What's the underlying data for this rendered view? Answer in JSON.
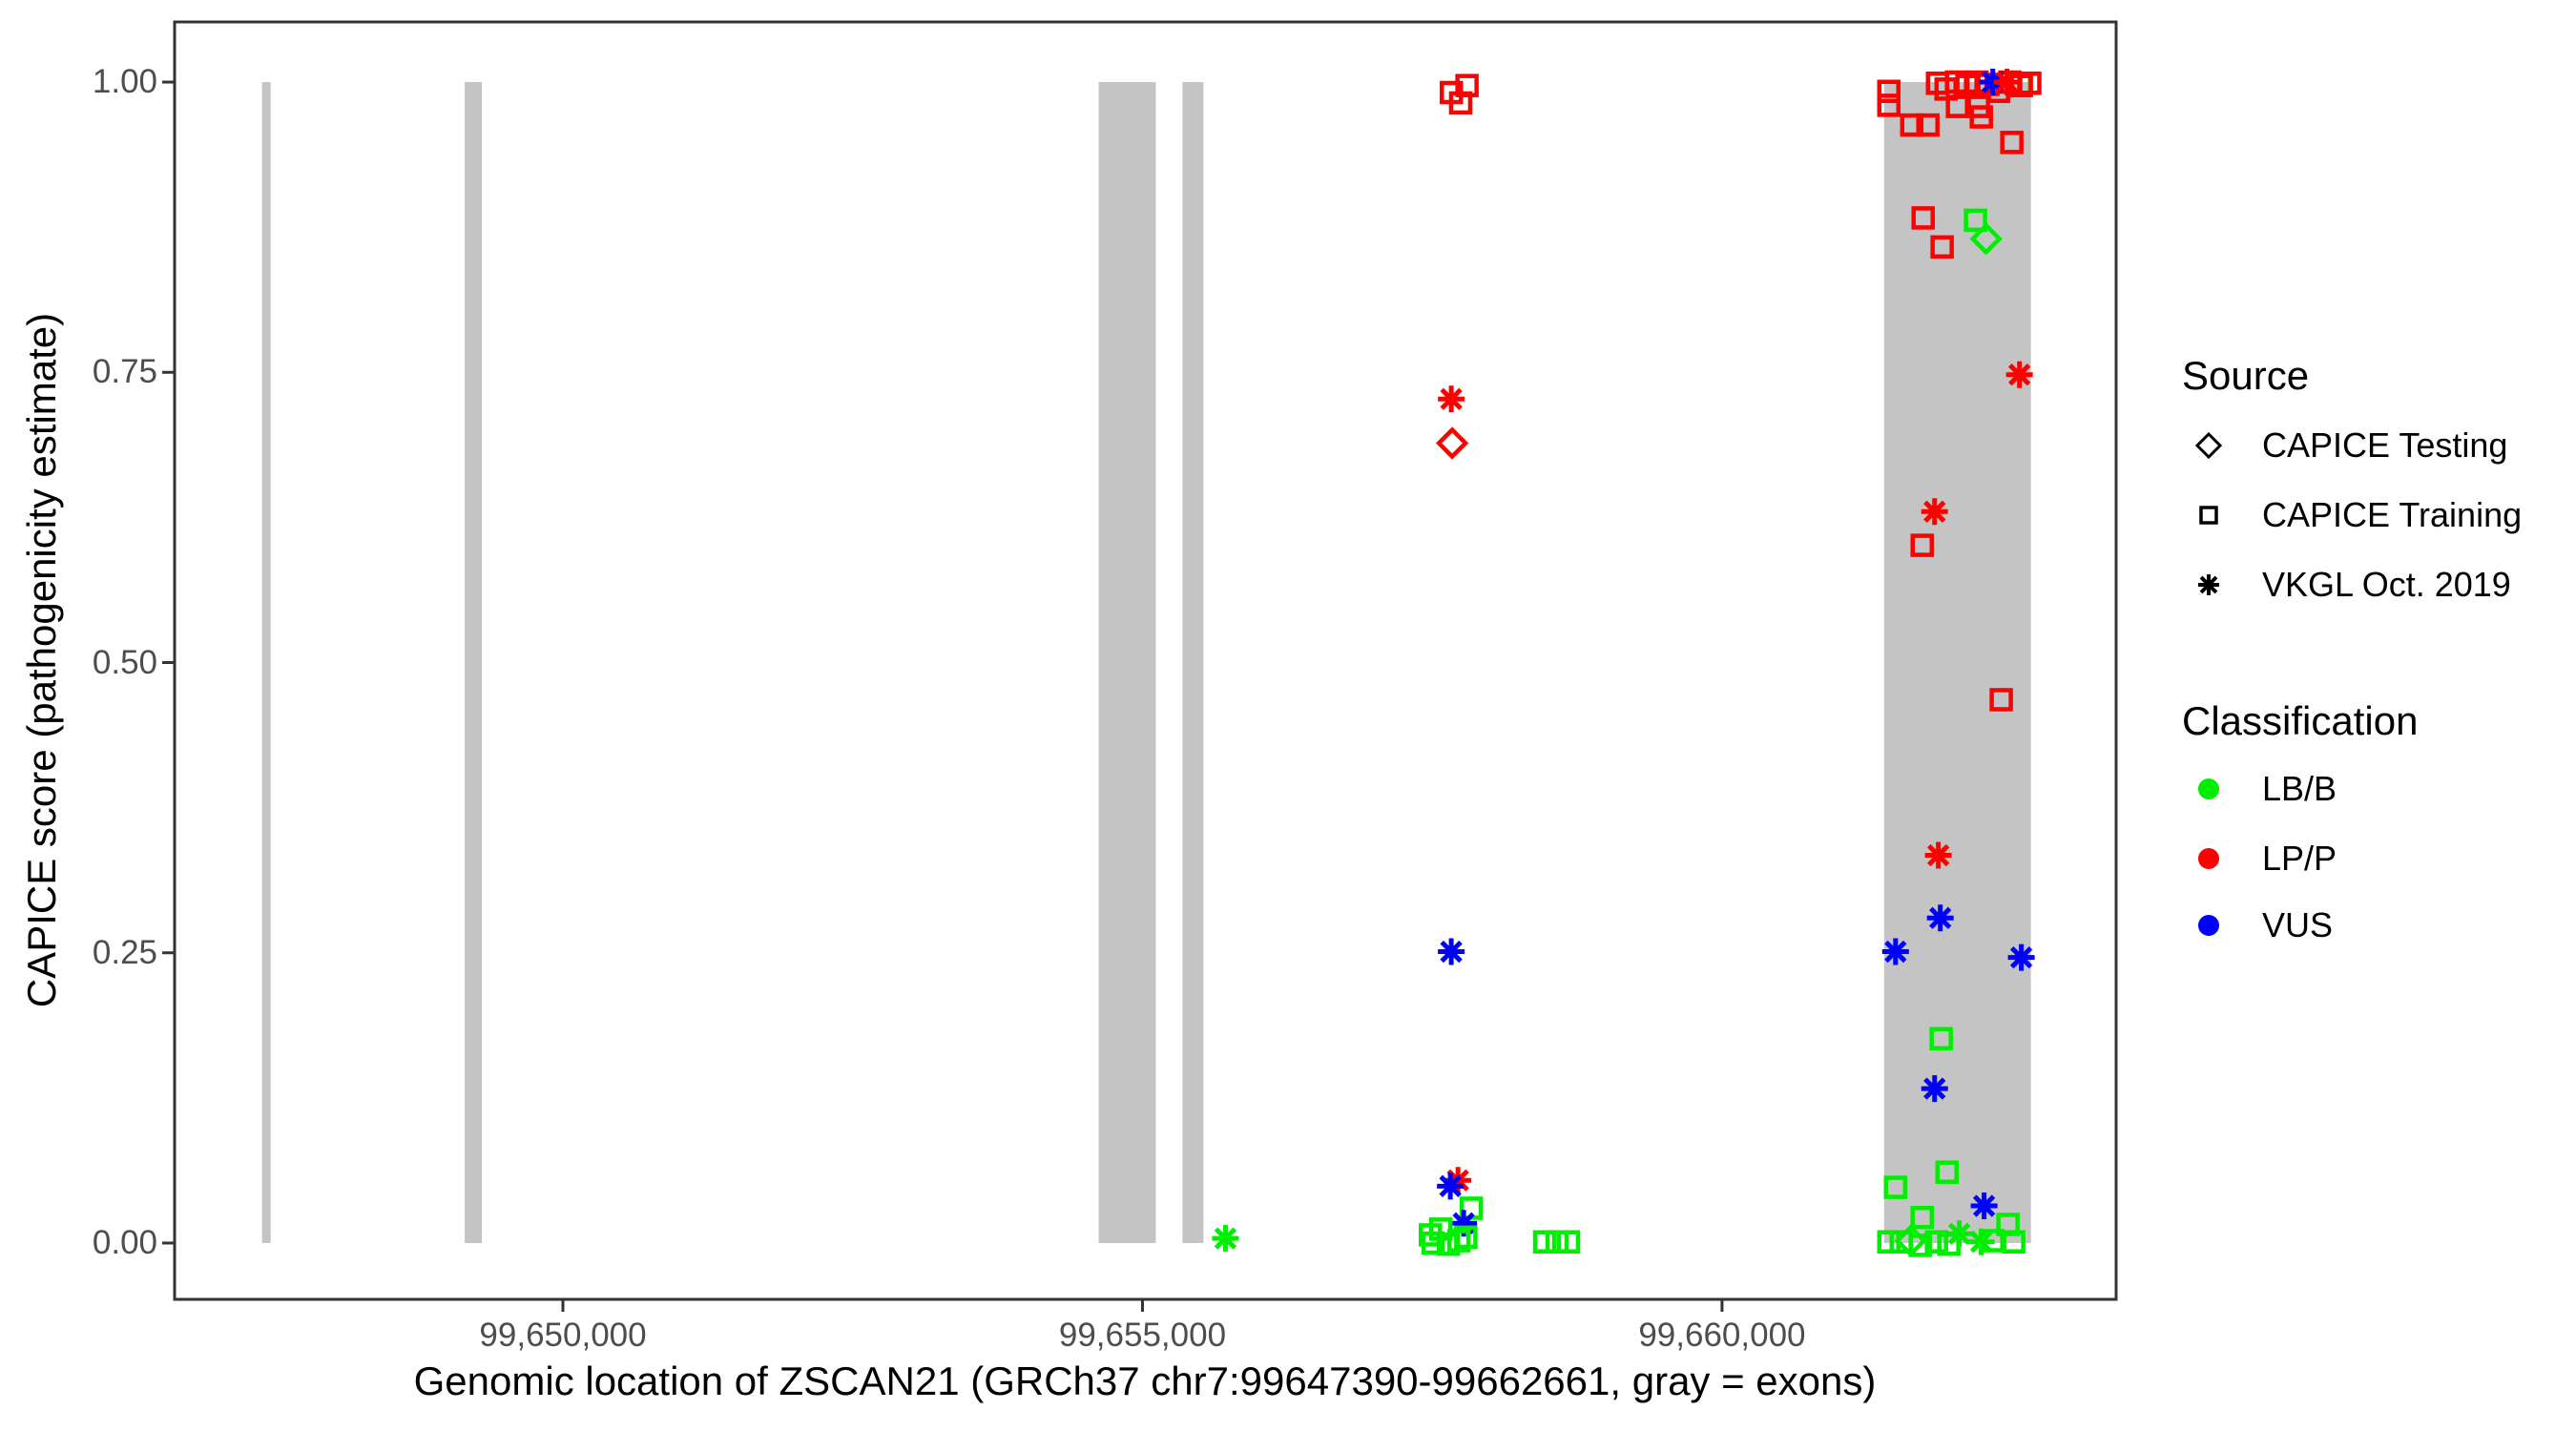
{
  "chart_data": {
    "type": "scatter",
    "xlabel": "Genomic location of ZSCAN21 (GRCh37 chr7:99647390-99662661, gray = exons)",
    "ylabel": "CAPICE score (pathogenicity estimate)",
    "x_domain": [
      99646650,
      99663400
    ],
    "y_domain": [
      -0.0485,
      1.0518
    ],
    "grid": false,
    "xticks": [
      {
        "value": 99650000,
        "label": "99,650,000"
      },
      {
        "value": 99655000,
        "label": "99,655,000"
      },
      {
        "value": 99660000,
        "label": "99,660,000"
      }
    ],
    "yticks": [
      {
        "value": 0.0,
        "label": "0.00"
      },
      {
        "value": 0.25,
        "label": "0.25"
      },
      {
        "value": 0.5,
        "label": "0.50"
      },
      {
        "value": 0.75,
        "label": "0.75"
      },
      {
        "value": 1.0,
        "label": "1.00"
      }
    ],
    "exon_color": "#C4C4C4",
    "exon_y_range": [
      0,
      1
    ],
    "exons": [
      {
        "start": 99647405,
        "end": 99647479
      },
      {
        "start": 99649153,
        "end": 99649301
      },
      {
        "start": 99654622,
        "end": 99655115
      },
      {
        "start": 99655345,
        "end": 99655526
      },
      {
        "start": 99661398,
        "end": 99662665
      }
    ],
    "class_colors": {
      "LB/B": "#00EE00",
      "LP/P": "#FF0000",
      "VUS": "#0000FF"
    },
    "points": [
      {
        "x": 99655716,
        "y": 0.004,
        "shape": "asterisk",
        "cls": "LB/B"
      },
      {
        "x": 99657665,
        "y": 0.991,
        "shape": "square",
        "cls": "LP/P"
      },
      {
        "x": 99657800,
        "y": 0.997,
        "shape": "square",
        "cls": "LP/P"
      },
      {
        "x": 99657745,
        "y": 0.982,
        "shape": "square",
        "cls": "LP/P"
      },
      {
        "x": 99657664,
        "y": 0.727,
        "shape": "asterisk",
        "cls": "LP/P"
      },
      {
        "x": 99657672,
        "y": 0.689,
        "shape": "diamond",
        "cls": "LP/P"
      },
      {
        "x": 99657664,
        "y": 0.251,
        "shape": "asterisk",
        "cls": "VUS"
      },
      {
        "x": 99657722,
        "y": 0.054,
        "shape": "asterisk",
        "cls": "LP/P"
      },
      {
        "x": 99657656,
        "y": 0.049,
        "shape": "asterisk",
        "cls": "VUS"
      },
      {
        "x": 99657837,
        "y": 0.03,
        "shape": "square",
        "cls": "LB/B"
      },
      {
        "x": 99657771,
        "y": 0.017,
        "shape": "asterisk",
        "cls": "VUS"
      },
      {
        "x": 99657484,
        "y": 0.007,
        "shape": "square",
        "cls": "LB/B"
      },
      {
        "x": 99657574,
        "y": 0.012,
        "shape": "square",
        "cls": "LB/B"
      },
      {
        "x": 99657508,
        "y": 0.0,
        "shape": "square",
        "cls": "LB/B"
      },
      {
        "x": 99657640,
        "y": -0.001,
        "shape": "square",
        "cls": "LB/B"
      },
      {
        "x": 99657730,
        "y": 0.002,
        "shape": "square",
        "cls": "LB/B"
      },
      {
        "x": 99657790,
        "y": 0.005,
        "shape": "square",
        "cls": "LB/B"
      },
      {
        "x": 99658470,
        "y": 0.001,
        "shape": "square",
        "cls": "LB/B"
      },
      {
        "x": 99658577,
        "y": 0.001,
        "shape": "square",
        "cls": "LB/B"
      },
      {
        "x": 99658675,
        "y": 0.001,
        "shape": "square",
        "cls": "LB/B"
      },
      {
        "x": 99662574,
        "y": 0.998,
        "shape": "square",
        "cls": "LB/B"
      },
      {
        "x": 99661439,
        "y": 0.992,
        "shape": "square",
        "cls": "LP/P"
      },
      {
        "x": 99661439,
        "y": 0.98,
        "shape": "square",
        "cls": "LP/P"
      },
      {
        "x": 99661859,
        "y": 0.999,
        "shape": "square",
        "cls": "LP/P"
      },
      {
        "x": 99661933,
        "y": 0.994,
        "shape": "square",
        "cls": "LP/P"
      },
      {
        "x": 99662023,
        "y": 1.0,
        "shape": "square",
        "cls": "LP/P"
      },
      {
        "x": 99662113,
        "y": 0.997,
        "shape": "square",
        "cls": "LP/P"
      },
      {
        "x": 99662200,
        "y": 1.0,
        "shape": "square",
        "cls": "LP/P"
      },
      {
        "x": 99662294,
        "y": 0.998,
        "shape": "square",
        "cls": "LP/P"
      },
      {
        "x": 99662385,
        "y": 0.992,
        "shape": "square",
        "cls": "LP/P"
      },
      {
        "x": 99662483,
        "y": 1.0,
        "shape": "square",
        "cls": "LP/P"
      },
      {
        "x": 99662582,
        "y": 0.997,
        "shape": "square",
        "cls": "LP/P"
      },
      {
        "x": 99662655,
        "y": 0.999,
        "shape": "square",
        "cls": "LP/P"
      },
      {
        "x": 99662031,
        "y": 0.979,
        "shape": "square",
        "cls": "LP/P"
      },
      {
        "x": 99662212,
        "y": 0.979,
        "shape": "square",
        "cls": "LP/P"
      },
      {
        "x": 99662237,
        "y": 0.97,
        "shape": "square",
        "cls": "LP/P"
      },
      {
        "x": 99661637,
        "y": 0.963,
        "shape": "square",
        "cls": "LP/P"
      },
      {
        "x": 99661776,
        "y": 0.963,
        "shape": "square",
        "cls": "LP/P"
      },
      {
        "x": 99662500,
        "y": 0.948,
        "shape": "square",
        "cls": "LP/P"
      },
      {
        "x": 99662336,
        "y": 1.0,
        "shape": "asterisk",
        "cls": "VUS"
      },
      {
        "x": 99662459,
        "y": 1.0,
        "shape": "asterisk",
        "cls": "LP/P"
      },
      {
        "x": 99661735,
        "y": 0.883,
        "shape": "square",
        "cls": "LP/P"
      },
      {
        "x": 99661899,
        "y": 0.858,
        "shape": "square",
        "cls": "LP/P"
      },
      {
        "x": 99662187,
        "y": 0.881,
        "shape": "square",
        "cls": "LB/B"
      },
      {
        "x": 99662278,
        "y": 0.865,
        "shape": "diamond",
        "cls": "LB/B"
      },
      {
        "x": 99662566,
        "y": 0.748,
        "shape": "asterisk",
        "cls": "LP/P"
      },
      {
        "x": 99661834,
        "y": 0.63,
        "shape": "asterisk",
        "cls": "LP/P"
      },
      {
        "x": 99661727,
        "y": 0.601,
        "shape": "square",
        "cls": "LP/P"
      },
      {
        "x": 99662409,
        "y": 0.468,
        "shape": "square",
        "cls": "LP/P"
      },
      {
        "x": 99661866,
        "y": 0.334,
        "shape": "asterisk",
        "cls": "LP/P"
      },
      {
        "x": 99661883,
        "y": 0.28,
        "shape": "asterisk",
        "cls": "VUS"
      },
      {
        "x": 99661497,
        "y": 0.251,
        "shape": "asterisk",
        "cls": "VUS"
      },
      {
        "x": 99662582,
        "y": 0.246,
        "shape": "asterisk",
        "cls": "VUS"
      },
      {
        "x": 99661891,
        "y": 0.176,
        "shape": "square",
        "cls": "LB/B"
      },
      {
        "x": 99661834,
        "y": 0.133,
        "shape": "asterisk",
        "cls": "VUS"
      },
      {
        "x": 99661941,
        "y": 0.061,
        "shape": "square",
        "cls": "LB/B"
      },
      {
        "x": 99661497,
        "y": 0.048,
        "shape": "square",
        "cls": "LB/B"
      },
      {
        "x": 99662261,
        "y": 0.032,
        "shape": "asterisk",
        "cls": "VUS"
      },
      {
        "x": 99661727,
        "y": 0.022,
        "shape": "square",
        "cls": "LB/B"
      },
      {
        "x": 99662467,
        "y": 0.016,
        "shape": "square",
        "cls": "LB/B"
      },
      {
        "x": 99661439,
        "y": 0.001,
        "shape": "square",
        "cls": "LB/B"
      },
      {
        "x": 99661546,
        "y": 0.001,
        "shape": "square",
        "cls": "LB/B"
      },
      {
        "x": 99661628,
        "y": 0.002,
        "shape": "diamond",
        "cls": "LB/B"
      },
      {
        "x": 99661710,
        "y": -0.002,
        "shape": "square",
        "cls": "LB/B"
      },
      {
        "x": 99661850,
        "y": 0.001,
        "shape": "square",
        "cls": "LB/B"
      },
      {
        "x": 99661957,
        "y": -0.001,
        "shape": "square",
        "cls": "LB/B"
      },
      {
        "x": 99662047,
        "y": 0.008,
        "shape": "asterisk",
        "cls": "LB/B"
      },
      {
        "x": 99662236,
        "y": 0.001,
        "shape": "asterisk",
        "cls": "LB/B"
      },
      {
        "x": 99662336,
        "y": 0.002,
        "shape": "square",
        "cls": "LB/B"
      },
      {
        "x": 99662516,
        "y": 0.001,
        "shape": "square",
        "cls": "LB/B"
      }
    ],
    "legend": {
      "source": {
        "title": "Source",
        "items": [
          {
            "shape": "diamond",
            "label": "CAPICE Testing"
          },
          {
            "shape": "square",
            "label": "CAPICE Training"
          },
          {
            "shape": "asterisk",
            "label": "VKGL Oct. 2019"
          }
        ]
      },
      "classification": {
        "title": "Classification",
        "items": [
          {
            "label": "LB/B",
            "color": "#00EE00"
          },
          {
            "label": "LP/P",
            "color": "#FF0000"
          },
          {
            "label": "VUS",
            "color": "#0000FF"
          }
        ]
      }
    }
  }
}
